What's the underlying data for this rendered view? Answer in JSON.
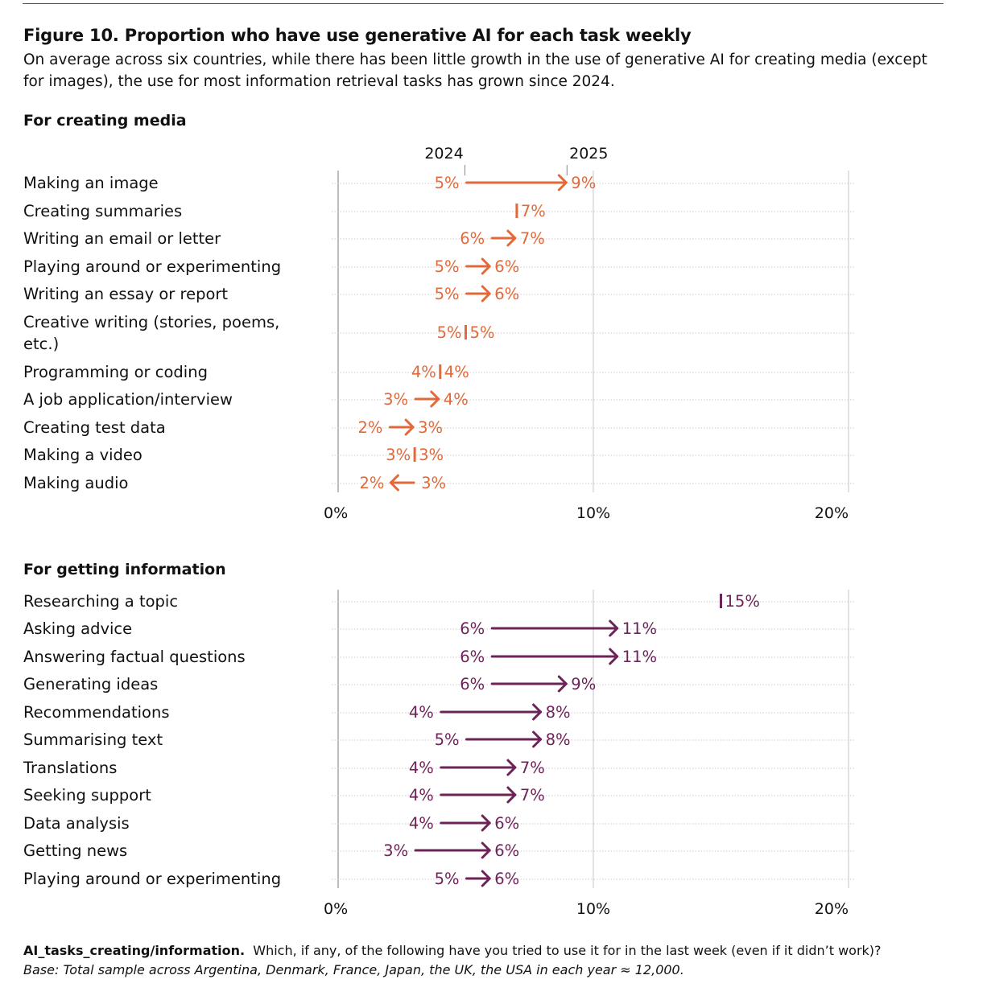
{
  "header": {
    "title": "Figure 10. Proportion who have use generative AI for each task weekly",
    "subtitle": "On average across six countries, while there has been little growth in the use of generative AI for creating media (except for images), the use for most information retrieval tasks has grown since 2024."
  },
  "footer": {
    "question_code": "AI_tasks_creating/information.",
    "question_text": "Which, if any, of the following have you tried to use it for in the last week (even if it didn’t work)?",
    "base": "Base: Total sample across Argentina, Denmark, France, Japan, the UK, the USA in each year ≈ 12,000."
  },
  "colors": {
    "creating_media": "#E2693A",
    "getting_information": "#6E2358",
    "gridline": "#d9d9d9",
    "dotted_guide": "#cccccc"
  },
  "chart_data": [
    {
      "type": "dumbbell-arrow",
      "title": "For creating media",
      "legend": [
        "2024",
        "2025"
      ],
      "legend_placement": "top",
      "xlim": [
        0,
        20
      ],
      "xticks": [
        "0%",
        "10%",
        "20%"
      ],
      "grid": true,
      "color_key": "creating_media",
      "categories": [
        "Making an image",
        "Creating summaries",
        "Writing an email or letter",
        "Playing around or experimenting",
        "Writing an essay or report",
        "Creative writing (stories, poems, etc.)",
        "Programming or coding",
        "A job application/interview",
        "Creating test data",
        "Making a video",
        "Making audio"
      ],
      "series": [
        {
          "name": "2024",
          "values": [
            5,
            7,
            6,
            5,
            5,
            5,
            4,
            3,
            2,
            3,
            3
          ]
        },
        {
          "name": "2025",
          "values": [
            9,
            7,
            7,
            6,
            6,
            5,
            4,
            4,
            3,
            3,
            2
          ]
        }
      ]
    },
    {
      "type": "dumbbell-arrow",
      "title": "For getting information",
      "xlim": [
        0,
        20
      ],
      "xticks": [
        "0%",
        "10%",
        "20%"
      ],
      "grid": true,
      "color_key": "getting_information",
      "categories": [
        "Researching a topic",
        "Asking advice",
        "Answering factual questions",
        "Generating ideas",
        "Recommendations",
        "Summarising text",
        "Translations",
        "Seeking support",
        "Data analysis",
        "Getting news",
        "Playing around or experimenting"
      ],
      "series": [
        {
          "name": "2024",
          "values": [
            15,
            6,
            6,
            6,
            4,
            5,
            4,
            4,
            4,
            3,
            5
          ]
        },
        {
          "name": "2025",
          "values": [
            15,
            11,
            11,
            9,
            8,
            8,
            7,
            7,
            6,
            6,
            6
          ]
        }
      ]
    }
  ]
}
